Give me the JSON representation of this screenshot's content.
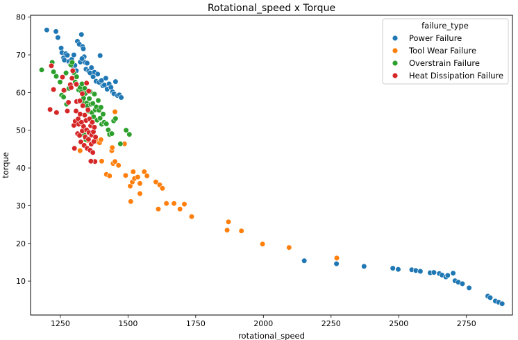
{
  "chart_data": {
    "type": "scatter",
    "title": "Rotational_speed x Torque",
    "xlabel": "rotational_speed",
    "ylabel": "torque",
    "xlim": [
      1140,
      2920
    ],
    "ylim": [
      1,
      80.5
    ],
    "xticks": [
      1250,
      1500,
      1750,
      2000,
      2250,
      2500,
      2750
    ],
    "yticks": [
      10,
      20,
      30,
      40,
      50,
      60,
      70,
      80
    ],
    "grid": false,
    "legend": {
      "title": "failure_type",
      "placement": "top-right"
    },
    "series": [
      {
        "name": "Power Failure",
        "color": "#1f77b4",
        "points": [
          [
            1200,
            76.6
          ],
          [
            1234,
            76.2
          ],
          [
            1241,
            74.6
          ],
          [
            1253,
            71.8
          ],
          [
            1256,
            70.6
          ],
          [
            1262,
            69.2
          ],
          [
            1265,
            68.6
          ],
          [
            1270,
            70.3
          ],
          [
            1276,
            69.9
          ],
          [
            1281,
            68.2
          ],
          [
            1287,
            67.4
          ],
          [
            1292,
            68.8
          ],
          [
            1298,
            66.8
          ],
          [
            1304,
            67.2
          ],
          [
            1309,
            65.8
          ],
          [
            1313,
            73.6
          ],
          [
            1320,
            72.8
          ],
          [
            1324,
            68.1
          ],
          [
            1328,
            75.4
          ],
          [
            1332,
            72.2
          ],
          [
            1335,
            71.6
          ],
          [
            1338,
            69.5
          ],
          [
            1342,
            68.0
          ],
          [
            1345,
            66.2
          ],
          [
            1349,
            67.8
          ],
          [
            1355,
            65.7
          ],
          [
            1360,
            65.2
          ],
          [
            1365,
            66.6
          ],
          [
            1371,
            64.2
          ],
          [
            1376,
            65.4
          ],
          [
            1382,
            63.0
          ],
          [
            1388,
            64.9
          ],
          [
            1393,
            62.7
          ],
          [
            1397,
            69.8
          ],
          [
            1402,
            63.2
          ],
          [
            1407,
            61.8
          ],
          [
            1413,
            62.0
          ],
          [
            1418,
            63.8
          ],
          [
            1423,
            60.9
          ],
          [
            1430,
            62.3
          ],
          [
            1437,
            61.4
          ],
          [
            1443,
            60.2
          ],
          [
            1448,
            59.7
          ],
          [
            1454,
            62.9
          ],
          [
            1461,
            59.2
          ],
          [
            1468,
            59.4
          ],
          [
            1475,
            58.7
          ],
          [
            1330,
            69.0
          ],
          [
            1300,
            70.0
          ],
          [
            2151,
            15.4
          ],
          [
            2270,
            14.6
          ],
          [
            2372,
            13.9
          ],
          [
            2478,
            13.4
          ],
          [
            2498,
            13.1
          ],
          [
            2548,
            13.0
          ],
          [
            2563,
            12.8
          ],
          [
            2580,
            12.6
          ],
          [
            2616,
            12.2
          ],
          [
            2630,
            12.3
          ],
          [
            2650,
            12.0
          ],
          [
            2660,
            11.6
          ],
          [
            2674,
            11.1
          ],
          [
            2681,
            11.5
          ],
          [
            2701,
            12.1
          ],
          [
            2708,
            10.1
          ],
          [
            2720,
            9.7
          ],
          [
            2735,
            9.3
          ],
          [
            2760,
            8.2
          ],
          [
            2829,
            6.0
          ],
          [
            2838,
            5.6
          ],
          [
            2857,
            4.7
          ],
          [
            2869,
            4.4
          ],
          [
            2882,
            4.0
          ]
        ]
      },
      {
        "name": "Tool Wear Failure",
        "color": "#ff7f0e",
        "points": [
          [
            1323,
            44.6
          ],
          [
            1350,
            47.3
          ],
          [
            1383,
            47.1
          ],
          [
            1395,
            46.7
          ],
          [
            1400,
            47.5
          ],
          [
            1403,
            41.8
          ],
          [
            1420,
            38.3
          ],
          [
            1432,
            37.9
          ],
          [
            1440,
            44.6
          ],
          [
            1442,
            45.4
          ],
          [
            1445,
            41.2
          ],
          [
            1452,
            41.7
          ],
          [
            1452,
            54.9
          ],
          [
            1465,
            40.7
          ],
          [
            1487,
            46.4
          ],
          [
            1491,
            38.0
          ],
          [
            1508,
            35.2
          ],
          [
            1510,
            31.1
          ],
          [
            1516,
            36.3
          ],
          [
            1519,
            39.0
          ],
          [
            1524,
            37.2
          ],
          [
            1536,
            37.6
          ],
          [
            1544,
            33.2
          ],
          [
            1544,
            35.9
          ],
          [
            1560,
            39.0
          ],
          [
            1570,
            37.9
          ],
          [
            1603,
            36.3
          ],
          [
            1612,
            29.1
          ],
          [
            1617,
            35.5
          ],
          [
            1627,
            34.6
          ],
          [
            1642,
            30.6
          ],
          [
            1670,
            30.6
          ],
          [
            1692,
            29.1
          ],
          [
            1708,
            30.4
          ],
          [
            1735,
            27.1
          ],
          [
            1866,
            23.5
          ],
          [
            1871,
            25.7
          ],
          [
            1919,
            23.3
          ],
          [
            1997,
            19.8
          ],
          [
            2095,
            18.9
          ],
          [
            2271,
            16.1
          ]
        ]
      },
      {
        "name": "Overstrain Failure",
        "color": "#2ca02c",
        "points": [
          [
            1181,
            66.0
          ],
          [
            1220,
            68.0
          ],
          [
            1225,
            65.5
          ],
          [
            1235,
            64.3
          ],
          [
            1249,
            62.8
          ],
          [
            1255,
            59.3
          ],
          [
            1262,
            58.8
          ],
          [
            1266,
            60.6
          ],
          [
            1271,
            65.2
          ],
          [
            1273,
            56.9
          ],
          [
            1282,
            61.1
          ],
          [
            1289,
            67.3
          ],
          [
            1294,
            68.0
          ],
          [
            1300,
            65.3
          ],
          [
            1305,
            62.8
          ],
          [
            1310,
            64.2
          ],
          [
            1318,
            60.7
          ],
          [
            1323,
            61.3
          ],
          [
            1328,
            60.2
          ],
          [
            1330,
            62.3
          ],
          [
            1333,
            57.6
          ],
          [
            1336,
            58.5
          ],
          [
            1340,
            61.1
          ],
          [
            1343,
            59.8
          ],
          [
            1347,
            57.2
          ],
          [
            1350,
            56.4
          ],
          [
            1353,
            55.1
          ],
          [
            1357,
            58.4
          ],
          [
            1360,
            60.3
          ],
          [
            1363,
            56.9
          ],
          [
            1366,
            54.7
          ],
          [
            1370,
            57.1
          ],
          [
            1373,
            53.6
          ],
          [
            1376,
            59.6
          ],
          [
            1379,
            55.4
          ],
          [
            1383,
            56.2
          ],
          [
            1386,
            52.7
          ],
          [
            1390,
            57.9
          ],
          [
            1393,
            55.3
          ],
          [
            1397,
            53.2
          ],
          [
            1400,
            56.1
          ],
          [
            1403,
            51.6
          ],
          [
            1408,
            54.3
          ],
          [
            1412,
            52.1
          ],
          [
            1420,
            51.7
          ],
          [
            1427,
            50.1
          ],
          [
            1432,
            48.9
          ],
          [
            1440,
            49.1
          ],
          [
            1447,
            52.5
          ],
          [
            1454,
            53.1
          ],
          [
            1472,
            46.4
          ],
          [
            1493,
            50.0
          ],
          [
            1505,
            48.9
          ],
          [
            1338,
            48.8
          ],
          [
            1345,
            47.5
          ]
        ]
      },
      {
        "name": "Heat Dissipation Failure",
        "color": "#d62728",
        "points": [
          [
            1212,
            55.5
          ],
          [
            1217,
            67.1
          ],
          [
            1225,
            60.8
          ],
          [
            1236,
            54.7
          ],
          [
            1258,
            64.1
          ],
          [
            1263,
            60.6
          ],
          [
            1276,
            55.1
          ],
          [
            1280,
            57.4
          ],
          [
            1287,
            62.1
          ],
          [
            1293,
            63.8
          ],
          [
            1296,
            65.8
          ],
          [
            1300,
            51.3
          ],
          [
            1302,
            45.2
          ],
          [
            1305,
            52.4
          ],
          [
            1308,
            55.1
          ],
          [
            1310,
            57.6
          ],
          [
            1314,
            49.1
          ],
          [
            1316,
            53.0
          ],
          [
            1318,
            51.6
          ],
          [
            1321,
            48.6
          ],
          [
            1323,
            54.3
          ],
          [
            1326,
            46.9
          ],
          [
            1328,
            52.1
          ],
          [
            1331,
            49.8
          ],
          [
            1333,
            56.5
          ],
          [
            1336,
            51.0
          ],
          [
            1338,
            46.0
          ],
          [
            1340,
            54.0
          ],
          [
            1342,
            48.2
          ],
          [
            1345,
            52.6
          ],
          [
            1347,
            50.1
          ],
          [
            1349,
            45.2
          ],
          [
            1352,
            55.4
          ],
          [
            1354,
            47.6
          ],
          [
            1356,
            49.4
          ],
          [
            1358,
            53.0
          ],
          [
            1360,
            44.7
          ],
          [
            1362,
            51.2
          ],
          [
            1364,
            46.3
          ],
          [
            1366,
            48.7
          ],
          [
            1368,
            52.1
          ],
          [
            1370,
            44.1
          ],
          [
            1372,
            49.6
          ],
          [
            1374,
            47.0
          ],
          [
            1376,
            50.8
          ],
          [
            1378,
            41.7
          ],
          [
            1380,
            48.2
          ],
          [
            1363,
            41.8
          ],
          [
            1355,
            60.4
          ],
          [
            1347,
            62.5
          ],
          [
            1331,
            59.7
          ],
          [
            1322,
            57.8
          ],
          [
            1290,
            61.3
          ],
          [
            1309,
            62.2
          ]
        ]
      }
    ]
  }
}
